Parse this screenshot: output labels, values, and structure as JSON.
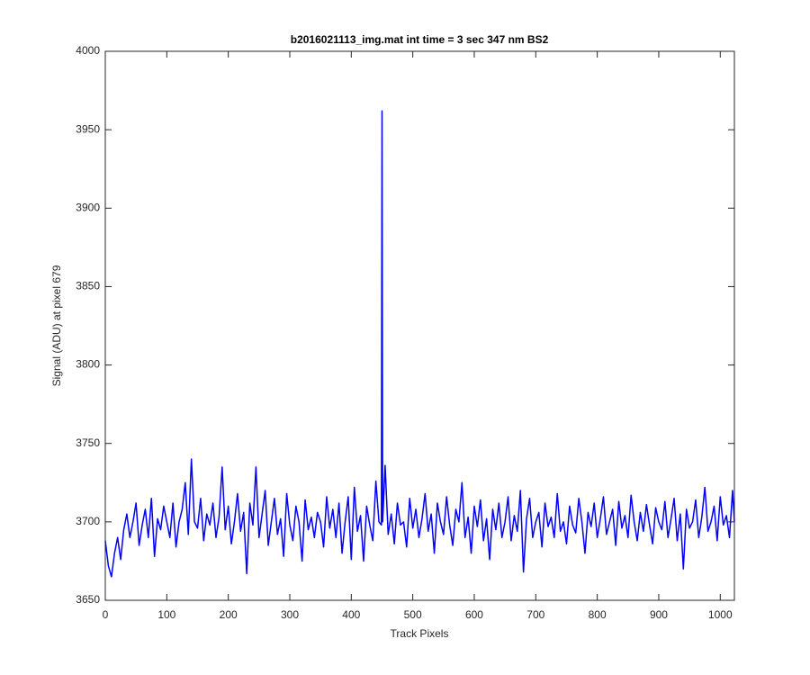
{
  "chart_data": {
    "type": "line",
    "title": "b2016021113_img.mat int time = 3 sec  347 nm BS2",
    "xlabel": "Track Pixels",
    "ylabel": "Signal (ADU) at pixel 679",
    "xlim": [
      0,
      1023
    ],
    "ylim": [
      3650,
      4000
    ],
    "xticks": [
      0,
      100,
      200,
      300,
      400,
      500,
      600,
      700,
      800,
      900,
      1000
    ],
    "yticks": [
      3650,
      3700,
      3750,
      3800,
      3850,
      3900,
      3950,
      4000
    ],
    "grid": false,
    "series": [
      {
        "color": "#0000ff",
        "x": [
          0,
          5,
          10,
          15,
          20,
          25,
          30,
          35,
          40,
          45,
          50,
          55,
          60,
          65,
          70,
          75,
          80,
          85,
          90,
          95,
          100,
          105,
          110,
          115,
          120,
          125,
          130,
          135,
          140,
          145,
          150,
          155,
          160,
          165,
          170,
          175,
          180,
          185,
          190,
          195,
          200,
          205,
          210,
          215,
          220,
          225,
          230,
          235,
          240,
          245,
          250,
          255,
          260,
          265,
          270,
          275,
          280,
          285,
          290,
          295,
          300,
          305,
          310,
          315,
          320,
          325,
          330,
          335,
          340,
          345,
          350,
          355,
          360,
          365,
          370,
          375,
          380,
          385,
          390,
          395,
          400,
          405,
          410,
          415,
          420,
          425,
          430,
          435,
          440,
          445,
          449,
          450,
          451,
          455,
          460,
          465,
          470,
          475,
          480,
          485,
          490,
          495,
          500,
          505,
          510,
          515,
          520,
          525,
          530,
          535,
          540,
          545,
          550,
          555,
          560,
          565,
          570,
          575,
          580,
          585,
          590,
          595,
          600,
          605,
          610,
          615,
          620,
          625,
          630,
          635,
          640,
          645,
          650,
          655,
          660,
          665,
          670,
          675,
          680,
          685,
          690,
          695,
          700,
          705,
          710,
          715,
          720,
          725,
          730,
          735,
          740,
          745,
          750,
          755,
          760,
          765,
          770,
          775,
          780,
          785,
          790,
          795,
          800,
          805,
          810,
          815,
          820,
          825,
          830,
          835,
          840,
          845,
          850,
          855,
          860,
          865,
          870,
          875,
          880,
          885,
          890,
          895,
          900,
          905,
          910,
          915,
          920,
          925,
          930,
          935,
          940,
          945,
          950,
          955,
          960,
          965,
          970,
          975,
          980,
          985,
          990,
          995,
          1000,
          1005,
          1010,
          1015,
          1020,
          1023
        ],
        "values": [
          3688,
          3672,
          3665,
          3680,
          3690,
          3676,
          3695,
          3705,
          3690,
          3700,
          3712,
          3685,
          3698,
          3708,
          3690,
          3715,
          3678,
          3702,
          3695,
          3710,
          3700,
          3690,
          3712,
          3684,
          3700,
          3708,
          3725,
          3692,
          3740,
          3700,
          3696,
          3715,
          3688,
          3705,
          3698,
          3712,
          3690,
          3703,
          3735,
          3695,
          3710,
          3686,
          3700,
          3718,
          3694,
          3706,
          3667,
          3712,
          3698,
          3735,
          3690,
          3705,
          3720,
          3685,
          3700,
          3715,
          3692,
          3702,
          3678,
          3718,
          3698,
          3688,
          3710,
          3700,
          3675,
          3714,
          3695,
          3703,
          3690,
          3706,
          3700,
          3684,
          3716,
          3696,
          3708,
          3690,
          3712,
          3680,
          3700,
          3716,
          3676,
          3722,
          3694,
          3704,
          3675,
          3710,
          3698,
          3688,
          3726,
          3700,
          3698,
          3962,
          3700,
          3736,
          3692,
          3705,
          3686,
          3712,
          3698,
          3700,
          3684,
          3715,
          3696,
          3708,
          3690,
          3702,
          3718,
          3694,
          3705,
          3680,
          3712,
          3700,
          3692,
          3716,
          3698,
          3685,
          3708,
          3700,
          3725,
          3690,
          3703,
          3680,
          3710,
          3697,
          3714,
          3688,
          3702,
          3676,
          3708,
          3695,
          3712,
          3690,
          3700,
          3716,
          3688,
          3704,
          3694,
          3720,
          3668,
          3702,
          3715,
          3690,
          3700,
          3706,
          3684,
          3712,
          3697,
          3703,
          3690,
          3718,
          3694,
          3700,
          3686,
          3710,
          3698,
          3693,
          3715,
          3700,
          3680,
          3706,
          3697,
          3712,
          3690,
          3702,
          3716,
          3692,
          3700,
          3708,
          3685,
          3713,
          3696,
          3704,
          3690,
          3717,
          3700,
          3688,
          3706,
          3694,
          3711,
          3698,
          3686,
          3709,
          3700,
          3695,
          3713,
          3690,
          3702,
          3715,
          3688,
          3705,
          3670,
          3708,
          3696,
          3700,
          3714,
          3690,
          3703,
          3722,
          3694,
          3700,
          3710,
          3688,
          3716,
          3698,
          3704,
          3690,
          3720,
          3700
        ]
      }
    ]
  }
}
